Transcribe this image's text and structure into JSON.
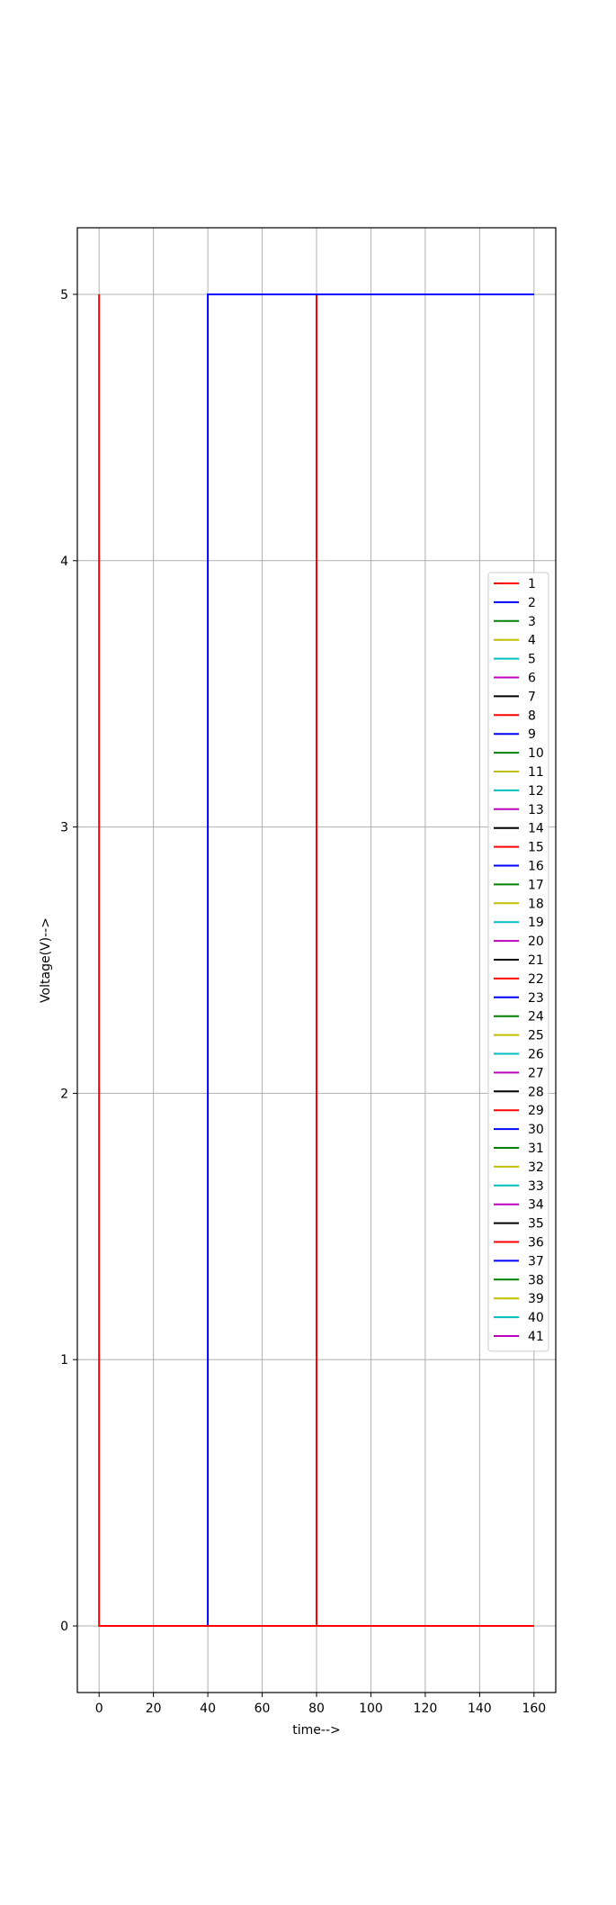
{
  "chart_data": {
    "type": "line",
    "title": "",
    "xlabel": "time-->",
    "ylabel": "Voltage(V)-->",
    "xlim": [
      -8,
      168
    ],
    "ylim": [
      -0.25,
      5.25
    ],
    "xticks": [
      0,
      20,
      40,
      60,
      80,
      100,
      120,
      140,
      160
    ],
    "yticks": [
      0,
      1,
      2,
      3,
      4,
      5
    ],
    "grid": true,
    "legend_location": "right",
    "colors": [
      "#ff0000",
      "#0000ff",
      "#008000",
      "#bfbf00",
      "#00bfbf",
      "#bf00bf",
      "#000000"
    ],
    "series": [
      {
        "name": "1",
        "x": [
          0,
          0,
          0,
          160
        ],
        "y": [
          0,
          5,
          0,
          0
        ]
      },
      {
        "name": "2",
        "x": [
          0,
          40,
          40,
          160
        ],
        "y": [
          0,
          0,
          5,
          5
        ]
      },
      {
        "name": "3",
        "x": [
          0,
          160
        ],
        "y": [
          0,
          0
        ]
      },
      {
        "name": "4",
        "x": [
          0,
          160
        ],
        "y": [
          0,
          0
        ]
      },
      {
        "name": "5",
        "x": [
          0,
          160
        ],
        "y": [
          0,
          0
        ]
      },
      {
        "name": "6",
        "x": [
          0,
          160
        ],
        "y": [
          0,
          0
        ]
      },
      {
        "name": "7",
        "x": [
          0,
          160
        ],
        "y": [
          0,
          0
        ]
      },
      {
        "name": "8",
        "x": [
          0,
          80,
          80,
          160
        ],
        "y": [
          0,
          0,
          5,
          5
        ]
      },
      {
        "name": "9",
        "x": [
          0,
          160
        ],
        "y": [
          0,
          0
        ]
      },
      {
        "name": "10",
        "x": [
          0,
          160
        ],
        "y": [
          0,
          0
        ]
      },
      {
        "name": "11",
        "x": [
          0,
          160
        ],
        "y": [
          0,
          0
        ]
      },
      {
        "name": "12",
        "x": [
          0,
          160
        ],
        "y": [
          0,
          0
        ]
      },
      {
        "name": "13",
        "x": [
          0,
          160
        ],
        "y": [
          0,
          0
        ]
      },
      {
        "name": "14",
        "x": [
          0,
          160
        ],
        "y": [
          0,
          0
        ]
      },
      {
        "name": "15",
        "x": [
          0,
          160
        ],
        "y": [
          0,
          0
        ]
      },
      {
        "name": "16",
        "x": [
          0,
          160
        ],
        "y": [
          0,
          0
        ]
      },
      {
        "name": "17",
        "x": [
          0,
          160
        ],
        "y": [
          0,
          0
        ]
      },
      {
        "name": "18",
        "x": [
          0,
          160
        ],
        "y": [
          0,
          0
        ]
      },
      {
        "name": "19",
        "x": [
          0,
          160
        ],
        "y": [
          0,
          0
        ]
      },
      {
        "name": "20",
        "x": [
          0,
          160
        ],
        "y": [
          0,
          0
        ]
      },
      {
        "name": "21",
        "x": [
          0,
          160
        ],
        "y": [
          0,
          0
        ]
      },
      {
        "name": "22",
        "x": [
          0,
          160
        ],
        "y": [
          0,
          0
        ]
      },
      {
        "name": "23",
        "x": [
          0,
          160
        ],
        "y": [
          0,
          0
        ]
      },
      {
        "name": "24",
        "x": [
          0,
          160
        ],
        "y": [
          0,
          0
        ]
      },
      {
        "name": "25",
        "x": [
          0,
          160
        ],
        "y": [
          0,
          0
        ]
      },
      {
        "name": "26",
        "x": [
          0,
          160
        ],
        "y": [
          0,
          0
        ]
      },
      {
        "name": "27",
        "x": [
          0,
          160
        ],
        "y": [
          0,
          0
        ]
      },
      {
        "name": "28",
        "x": [
          0,
          160
        ],
        "y": [
          0,
          0
        ]
      },
      {
        "name": "29",
        "x": [
          0,
          160
        ],
        "y": [
          0,
          0
        ]
      },
      {
        "name": "30",
        "x": [
          0,
          160
        ],
        "y": [
          0,
          0
        ]
      },
      {
        "name": "31",
        "x": [
          0,
          160
        ],
        "y": [
          0,
          0
        ]
      },
      {
        "name": "32",
        "x": [
          0,
          160
        ],
        "y": [
          0,
          0
        ]
      },
      {
        "name": "33",
        "x": [
          0,
          160
        ],
        "y": [
          0,
          0
        ]
      },
      {
        "name": "34",
        "x": [
          0,
          160
        ],
        "y": [
          0,
          0
        ]
      },
      {
        "name": "35",
        "x": [
          0,
          160
        ],
        "y": [
          0,
          0
        ]
      },
      {
        "name": "36",
        "x": [
          0,
          160
        ],
        "y": [
          0,
          0
        ]
      },
      {
        "name": "37",
        "x": [
          0,
          160
        ],
        "y": [
          0,
          0
        ]
      },
      {
        "name": "38",
        "x": [
          0,
          160
        ],
        "y": [
          0,
          0
        ]
      },
      {
        "name": "39",
        "x": [
          0,
          160
        ],
        "y": [
          0,
          0
        ]
      },
      {
        "name": "40",
        "x": [
          0,
          160
        ],
        "y": [
          0,
          0
        ]
      },
      {
        "name": "41",
        "x": [
          0,
          160
        ],
        "y": [
          0,
          0
        ]
      }
    ]
  }
}
